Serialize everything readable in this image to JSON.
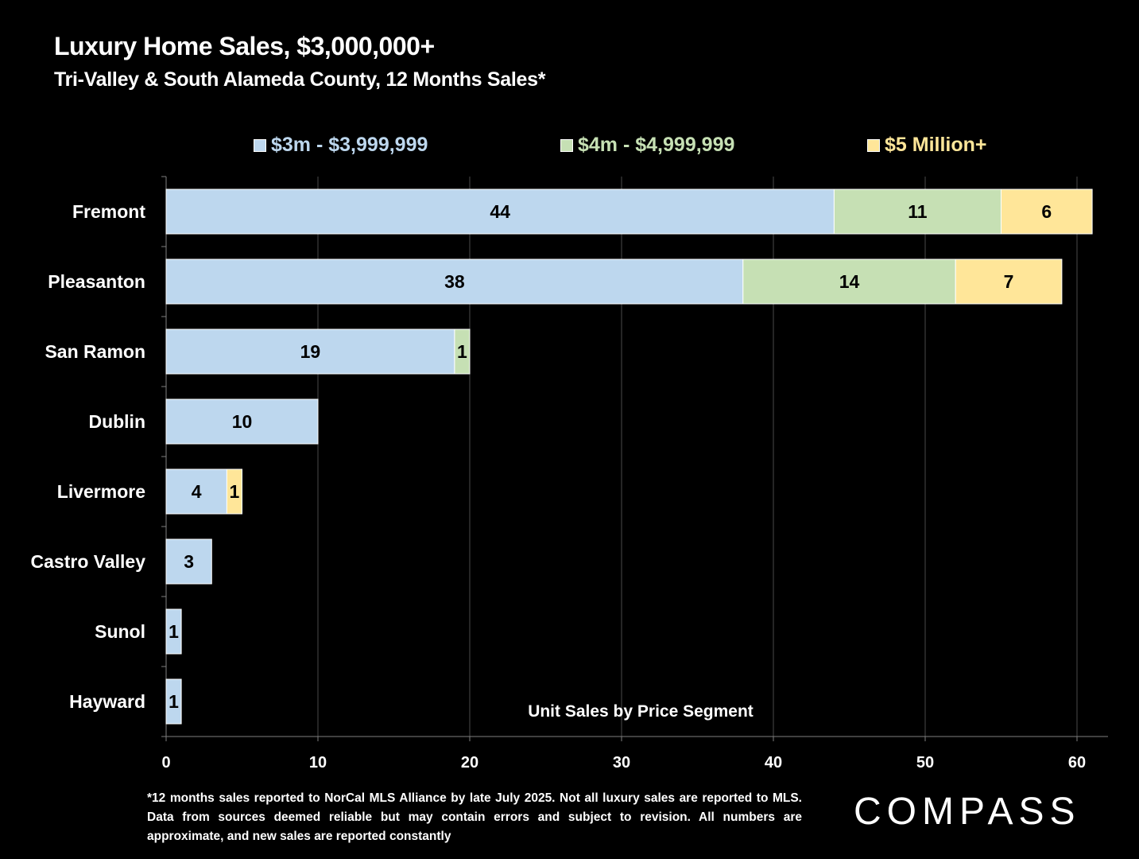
{
  "title": "Luxury Home Sales, $3,000,000+",
  "subtitle": "Tri-Valley & South Alameda County, 12 Months Sales*",
  "footnote": "*12 months sales reported to NorCal MLS Alliance by late July 2025. Not all luxury sales are reported to MLS. Data from sources deemed reliable but may contain errors and subject to revision. All numbers are approximate, and new sales are reported constantly",
  "logo_text": "COMPASS",
  "chart_data": {
    "type": "bar",
    "orientation": "horizontal",
    "stacked": true,
    "categories": [
      "Fremont",
      "Pleasanton",
      "San Ramon",
      "Dublin",
      "Livermore",
      "Castro Valley",
      "Sunol",
      "Hayward"
    ],
    "series": [
      {
        "name": "$3m - $3,999,999",
        "color": "#BDD7EE",
        "legend_text_color": "#BDD7EE",
        "values": [
          44,
          38,
          19,
          10,
          4,
          3,
          1,
          1
        ]
      },
      {
        "name": "$4m - $4,999,999",
        "color": "#C6E0B4",
        "legend_text_color": "#C6E0B4",
        "values": [
          11,
          14,
          1,
          0,
          0,
          0,
          0,
          0
        ]
      },
      {
        "name": "$5 Million+",
        "color": "#FFE699",
        "legend_text_color": "#FFE699",
        "values": [
          6,
          7,
          0,
          0,
          1,
          0,
          0,
          0
        ]
      }
    ],
    "xlabel": "Unit Sales by Price Segment",
    "xlim": [
      0,
      62
    ],
    "xticks": [
      0,
      10,
      20,
      30,
      40,
      50,
      60
    ],
    "grid": true,
    "legend_position": "top",
    "data_labels": true
  }
}
